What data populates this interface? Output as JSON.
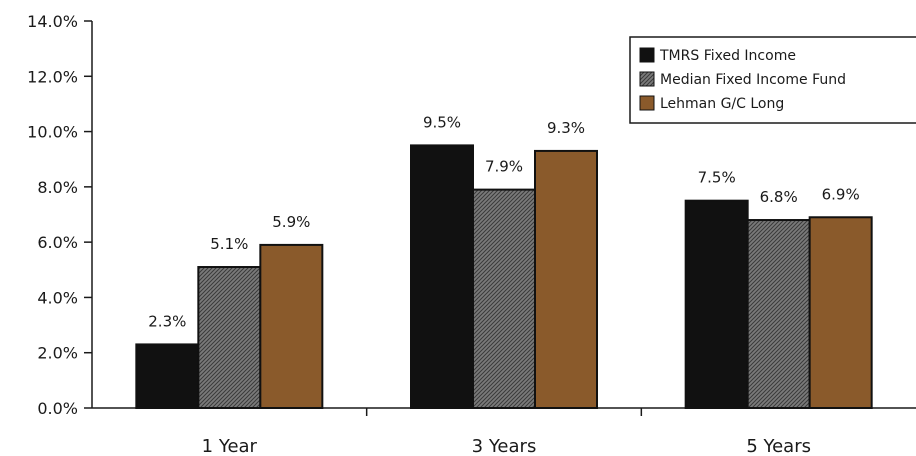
{
  "chart_data": {
    "type": "bar",
    "categories": [
      "1 Year",
      "3 Years",
      "5 Years"
    ],
    "series": [
      {
        "name": "TMRS Fixed Income",
        "values": [
          2.3,
          9.5,
          7.5
        ],
        "labels": [
          "2.3%",
          "9.5%",
          "7.5%"
        ],
        "color": "#111111"
      },
      {
        "name": "Median Fixed Income Fund",
        "values": [
          5.1,
          7.9,
          6.8
        ],
        "labels": [
          "5.1%",
          "7.9%",
          "6.8%"
        ],
        "color": "#6e6e6e"
      },
      {
        "name": "Lehman G/C Long",
        "values": [
          5.9,
          9.3,
          6.9
        ],
        "labels": [
          "5.9%",
          "9.3%",
          "6.9%"
        ],
        "color": "#8a5a2b"
      }
    ],
    "ylim": [
      0,
      14
    ],
    "yticks": [
      {
        "value": 0,
        "label": "0.0%"
      },
      {
        "value": 2,
        "label": "2.0%"
      },
      {
        "value": 4,
        "label": "4.0%"
      },
      {
        "value": 6,
        "label": "6.0%"
      },
      {
        "value": 8,
        "label": "8.0%"
      },
      {
        "value": 10,
        "label": "10.0%"
      },
      {
        "value": 12,
        "label": "12.0%"
      },
      {
        "value": 14,
        "label": "14.0%"
      }
    ],
    "grid": false,
    "legend": "top-right",
    "title": "",
    "xlabel": "",
    "ylabel": ""
  }
}
